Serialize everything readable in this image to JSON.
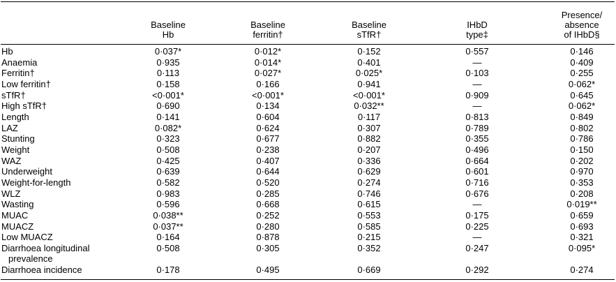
{
  "table": {
    "columns": [
      [
        "Baseline",
        "Hb"
      ],
      [
        "Baseline",
        "ferritin†"
      ],
      [
        "Baseline",
        "sTfR†"
      ],
      [
        "IHbD",
        "type‡"
      ],
      [
        "Presence/",
        "absence",
        "of IHbD§"
      ]
    ],
    "rows": [
      [
        "Hb",
        "0·037*",
        "0·012*",
        "0·152",
        "0·557",
        "0·146"
      ],
      [
        "Anaemia",
        "0·935",
        "0·014*",
        "0·401",
        "—",
        "0·409"
      ],
      [
        "Ferritin†",
        "0·113",
        "0·027*",
        "0·025*",
        "0·103",
        "0·255"
      ],
      [
        "Low ferritin†",
        "0·158",
        "0·166",
        "0·941",
        "—",
        "0·062*"
      ],
      [
        "sTfR†",
        "<0·001*",
        "<0·001*",
        "<0·001*",
        "0·909",
        "0·645"
      ],
      [
        "High sTfR†",
        "0·690",
        "0·134",
        "0·032**",
        "—",
        "0·062*"
      ],
      [
        "Length",
        "0·141",
        "0·604",
        "0·117",
        "0·813",
        "0·849"
      ],
      [
        "LAZ",
        "0·082*",
        "0·624",
        "0·307",
        "0·789",
        "0·802"
      ],
      [
        "Stunting",
        "0·323",
        "0·677",
        "0·882",
        "0·355",
        "0·786"
      ],
      [
        "Weight",
        "0·508",
        "0·238",
        "0·207",
        "0·496",
        "0·150"
      ],
      [
        "WAZ",
        "0·425",
        "0·407",
        "0·336",
        "0·664",
        "0·202"
      ],
      [
        "Underweight",
        "0·639",
        "0·644",
        "0·629",
        "0·601",
        "0·970"
      ],
      [
        "Weight-for-length",
        "0·582",
        "0·520",
        "0·274",
        "0·716",
        "0·353"
      ],
      [
        "WLZ",
        "0·983",
        "0·285",
        "0·746",
        "0·676",
        "0·208"
      ],
      [
        "Wasting",
        "0·596",
        "0·668",
        "0·615",
        "—",
        "0·019**"
      ],
      [
        "MUAC",
        "0·038**",
        "0·252",
        "0·553",
        "0·175",
        "0·659"
      ],
      [
        "MUACZ",
        "0·037**",
        "0·280",
        "0·585",
        "0·225",
        "0·693"
      ],
      [
        "Low MUACZ",
        "0·164",
        "0·878",
        "0·215",
        "—",
        "0·321"
      ],
      [
        "Diarrhoea longitudinal prevalence",
        "0·508",
        "0·305",
        "0·352",
        "0·247",
        "0·095*"
      ],
      [
        "Diarrhoea incidence",
        "0·178",
        "0·495",
        "0·669",
        "0·292",
        "0·274"
      ]
    ]
  }
}
